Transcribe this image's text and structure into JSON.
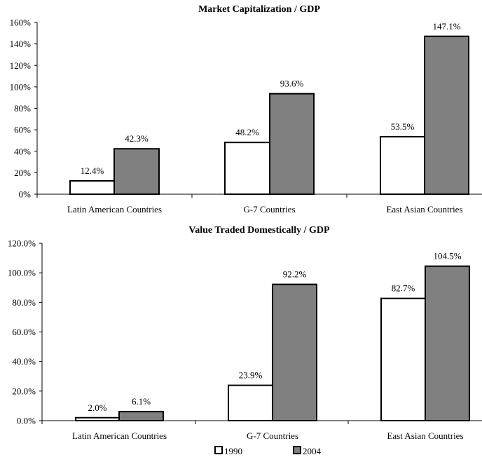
{
  "colors": {
    "1990": "#ffffff",
    "2004": "#808080",
    "stroke": "#000000"
  },
  "chart_data": [
    {
      "type": "bar",
      "title": "Market Capitalization / GDP",
      "xlabel": "",
      "ylabel": "",
      "categories": [
        "Latin American Countries",
        "G-7 Countries",
        "East Asian Countries"
      ],
      "series": [
        {
          "name": "1990",
          "values": [
            12.4,
            48.2,
            53.5
          ],
          "labels": [
            "12.4%",
            "48.2%",
            "53.5%"
          ]
        },
        {
          "name": "2004",
          "values": [
            42.3,
            93.6,
            147.1
          ],
          "labels": [
            "42.3%",
            "93.6%",
            "147.1%"
          ]
        }
      ],
      "ylim": [
        0,
        160
      ],
      "yticks": [
        0,
        20,
        40,
        60,
        80,
        100,
        120,
        140,
        160
      ],
      "ytick_labels": [
        "0%",
        "20%",
        "40%",
        "60%",
        "80%",
        "100%",
        "120%",
        "140%",
        "160%"
      ],
      "grid": false
    },
    {
      "type": "bar",
      "title": "Value Traded Domestically / GDP",
      "xlabel": "",
      "ylabel": "",
      "categories": [
        "Latin American Countries",
        "G-7 Countries",
        "East Asian Countries"
      ],
      "series": [
        {
          "name": "1990",
          "values": [
            2.0,
            23.9,
            82.7
          ],
          "labels": [
            "2.0%",
            "23.9%",
            "82.7%"
          ]
        },
        {
          "name": "2004",
          "values": [
            6.1,
            92.2,
            104.5
          ],
          "labels": [
            "6.1%",
            "92.2%",
            "104.5%"
          ]
        }
      ],
      "ylim": [
        0,
        120
      ],
      "yticks": [
        0,
        20,
        40,
        60,
        80,
        100,
        120
      ],
      "ytick_labels": [
        "0.0%",
        "20.0%",
        "40.0%",
        "60.0%",
        "80.0%",
        "100.0%",
        "120.0%"
      ],
      "grid": false,
      "legend": {
        "position": "bottom",
        "entries": [
          "1990",
          "2004"
        ]
      }
    }
  ]
}
